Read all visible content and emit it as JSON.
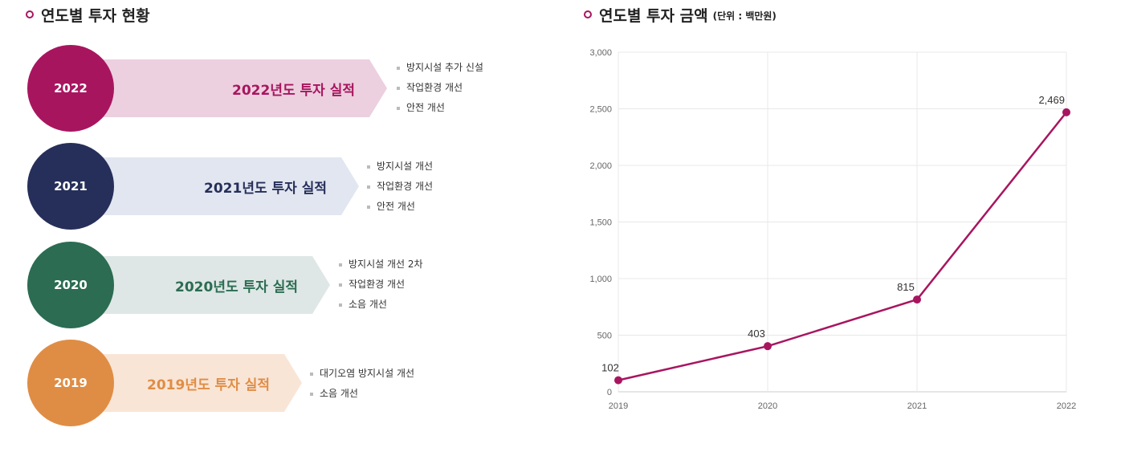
{
  "left_title": "연도별 투자 현황",
  "right_title": "연도별 투자 금액",
  "right_unit": "(단위 : 백만원)",
  "rows": [
    {
      "year": "2022",
      "label": "2022년도 투자 실적",
      "circle_color": "#a8155f",
      "arrow_color": "#ecd0df",
      "text_color": "#a8155f",
      "items": [
        "방지시설 추가 신설",
        "작업환경 개선",
        "안전 개선"
      ]
    },
    {
      "year": "2021",
      "label": "2021년도 투자 실적",
      "circle_color": "#262f5a",
      "arrow_color": "#e2e6f0",
      "text_color": "#262f5a",
      "items": [
        "방지시설 개선",
        "작업환경 개선",
        "안전 개선"
      ]
    },
    {
      "year": "2020",
      "label": "2020년도 투자 실적",
      "circle_color": "#2b6c52",
      "arrow_color": "#dfe7e6",
      "text_color": "#2b6c52",
      "items": [
        "방지시설 개선 2차",
        "작업환경 개선",
        "소음 개선"
      ]
    },
    {
      "year": "2019",
      "label": "2019년도 투자 실적",
      "circle_color": "#df8d45",
      "arrow_color": "#f9e5d6",
      "text_color": "#df8d45",
      "items": [
        "대기오염 방지시설 개선",
        "소음 개선"
      ]
    }
  ],
  "chart_data": {
    "type": "line",
    "title": "연도별 투자 금액",
    "ylabel": "단위 : 백만원",
    "xlabel": "",
    "categories": [
      "2019",
      "2020",
      "2021",
      "2022"
    ],
    "values": [
      102,
      403,
      815,
      2469
    ],
    "data_labels": [
      "102",
      "403",
      "815",
      "2,469"
    ],
    "ylim": [
      0,
      3000
    ],
    "yticks": [
      0,
      500,
      1000,
      1500,
      2000,
      2500,
      3000
    ],
    "ytick_labels": [
      "0",
      "500",
      "1,000",
      "1,500",
      "2,000",
      "2,500",
      "3,000"
    ],
    "grid": true,
    "color": "#a8155f"
  }
}
